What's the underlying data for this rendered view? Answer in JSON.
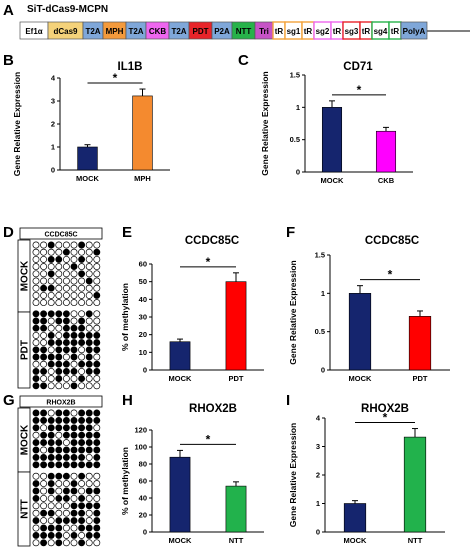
{
  "panel_a": {
    "letter": "A",
    "title": "SiT-dCas9-MCPN",
    "segments": [
      {
        "label": "Ef1α",
        "fill": "#ffffff",
        "text": "#000000"
      },
      {
        "label": "dCas9",
        "fill": "#f4d27a",
        "text": "#000000"
      },
      {
        "label": "T2A",
        "fill": "#7fa7d9",
        "text": "#000000"
      },
      {
        "label": "MPH",
        "fill": "#f39a3c",
        "text": "#000000"
      },
      {
        "label": "T2A",
        "fill": "#7fa7d9",
        "text": "#000000"
      },
      {
        "label": "CKB",
        "fill": "#ee66ee",
        "text": "#000000"
      },
      {
        "label": "T2A",
        "fill": "#7fa7d9",
        "text": "#000000"
      },
      {
        "label": "PDT",
        "fill": "#e8242a",
        "text": "#000000"
      },
      {
        "label": "P2A",
        "fill": "#7fa7d9",
        "text": "#000000"
      },
      {
        "label": "NTT",
        "fill": "#27b24a",
        "text": "#000000"
      },
      {
        "label": "Tri",
        "fill": "#c653c6",
        "text": "#000000"
      },
      {
        "label": "tR",
        "fill": "#ffffff",
        "text": "#000000",
        "border": "#f3a33c"
      },
      {
        "label": "sg1",
        "fill": "#ffffff",
        "text": "#000000",
        "border": "#f3a33c"
      },
      {
        "label": "tR",
        "fill": "#ffffff",
        "text": "#000000",
        "border": "#f3a33c"
      },
      {
        "label": "sg2",
        "fill": "#ffffff",
        "text": "#000000",
        "border": "#ee66ee"
      },
      {
        "label": "tR",
        "fill": "#ffffff",
        "text": "#000000",
        "border": "#ee66ee"
      },
      {
        "label": "sg3",
        "fill": "#ffffff",
        "text": "#000000",
        "border": "#e8242a"
      },
      {
        "label": "tR",
        "fill": "#ffffff",
        "text": "#000000",
        "border": "#e8242a"
      },
      {
        "label": "sg4",
        "fill": "#ffffff",
        "text": "#000000",
        "border": "#27b24a"
      },
      {
        "label": "tR",
        "fill": "#ffffff",
        "text": "#000000",
        "border": "#27b24a"
      },
      {
        "label": "PolyA",
        "fill": "#7fa7d9",
        "text": "#000000"
      }
    ]
  },
  "letters": {
    "B": "B",
    "C": "C",
    "D": "D",
    "E": "E",
    "F": "F",
    "G": "G",
    "H": "H",
    "I": "I"
  },
  "methylation_maps": [
    {
      "letter": "D",
      "title": "CCDC85C",
      "groups": [
        "MOCK",
        "PDT"
      ]
    },
    {
      "letter": "G",
      "title": "RHOX2B",
      "groups": [
        "MOCK",
        "NTT"
      ]
    }
  ],
  "chart_data": [
    {
      "id": "B",
      "type": "bar",
      "title": "IL1B",
      "ylabel": "Gene Relative Expression",
      "xlabel": "",
      "categories": [
        "MOCK",
        "MPH"
      ],
      "values": [
        1.0,
        3.22
      ],
      "errors": [
        0.1,
        0.3
      ],
      "colors": [
        "#15256e",
        "#f48a2f"
      ],
      "ylim": [
        0,
        4
      ],
      "yticks": [
        0,
        1,
        2,
        3,
        4
      ],
      "ytick_labels": [
        "0",
        "1",
        "2",
        "3",
        "4"
      ],
      "significance": "*"
    },
    {
      "id": "C",
      "type": "bar",
      "title": "CD71",
      "ylabel": "Gene Relative Expression",
      "xlabel": "",
      "categories": [
        "MOCK",
        "CKB"
      ],
      "values": [
        1.0,
        0.63
      ],
      "errors": [
        0.1,
        0.06
      ],
      "colors": [
        "#15256e",
        "#ff00ff"
      ],
      "ylim": [
        0,
        1.5
      ],
      "yticks": [
        0,
        0.5,
        1,
        1.5
      ],
      "ytick_labels": [
        "0",
        "0.5",
        "1",
        "1.5"
      ],
      "significance": "*"
    },
    {
      "id": "E",
      "type": "bar",
      "title": "CCDC85C",
      "ylabel": "% of methylation",
      "xlabel": "",
      "categories": [
        "MOCK",
        "PDT"
      ],
      "values": [
        16,
        50
      ],
      "errors": [
        1.5,
        5
      ],
      "colors": [
        "#15256e",
        "#ff0000"
      ],
      "ylim": [
        0,
        60
      ],
      "yticks": [
        0,
        10,
        20,
        30,
        40,
        50,
        60
      ],
      "ytick_labels": [
        "0",
        "10",
        "20",
        "30",
        "40",
        "50",
        "60"
      ],
      "significance": "*"
    },
    {
      "id": "F",
      "type": "bar",
      "title": "CCDC85C",
      "ylabel": "Gene Relative Expression",
      "xlabel": "",
      "categories": [
        "MOCK",
        "PDT"
      ],
      "values": [
        1.0,
        0.7
      ],
      "errors": [
        0.1,
        0.07
      ],
      "colors": [
        "#15256e",
        "#ff0000"
      ],
      "ylim": [
        0,
        1.5
      ],
      "yticks": [
        0,
        0.5,
        1,
        1.5
      ],
      "ytick_labels": [
        "0",
        "0.5",
        "1",
        "1.5"
      ],
      "significance": "*"
    },
    {
      "id": "H",
      "type": "bar",
      "title": "RHOX2B",
      "ylabel": "% of methylation",
      "xlabel": "",
      "categories": [
        "MOCK",
        "NTT"
      ],
      "values": [
        88,
        54
      ],
      "errors": [
        8,
        5
      ],
      "colors": [
        "#15256e",
        "#22b24c"
      ],
      "ylim": [
        0,
        120
      ],
      "yticks": [
        0,
        20,
        40,
        60,
        80,
        100,
        120
      ],
      "ytick_labels": [
        "0",
        "20",
        "40",
        "60",
        "80",
        "100",
        "120"
      ],
      "significance": "*"
    },
    {
      "id": "I",
      "type": "bar",
      "title": "RHOX2B",
      "ylabel": "Gene Relative Expression",
      "xlabel": "",
      "categories": [
        "MOCK",
        "NTT"
      ],
      "values": [
        1.0,
        3.33
      ],
      "errors": [
        0.1,
        0.3
      ],
      "colors": [
        "#15256e",
        "#22b24c"
      ],
      "ylim": [
        0,
        4
      ],
      "yticks": [
        0,
        1,
        2,
        3,
        4
      ],
      "ytick_labels": [
        "0",
        "1",
        "2",
        "3",
        "4"
      ],
      "significance": "*"
    }
  ]
}
